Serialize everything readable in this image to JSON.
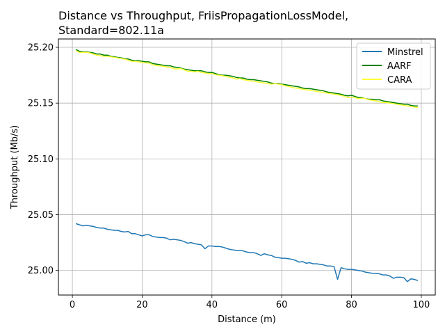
{
  "chart_data": {
    "type": "line",
    "title_line1": "Distance vs Throughput, FriisPropagationLossModel,",
    "title_line2": "Standard=802.11a",
    "xlabel": "Distance (m)",
    "ylabel": "Throughput (Mb/s)",
    "xlim": [
      -4,
      104
    ],
    "ylim": [
      24.978,
      25.2075
    ],
    "xticks": [
      0,
      20,
      40,
      60,
      80,
      100
    ],
    "yticks": [
      25.0,
      25.05,
      25.1,
      25.15,
      25.2
    ],
    "xtick_labels": [
      "0",
      "20",
      "40",
      "60",
      "80",
      "100"
    ],
    "ytick_labels": [
      "25.00",
      "25.05",
      "25.10",
      "25.15",
      "25.20"
    ],
    "grid": true,
    "legend_position": "top-right",
    "series": [
      {
        "name": "Minstrel",
        "color": "#1f77b4",
        "x": [
          1,
          2,
          3,
          4,
          5,
          6,
          7,
          8,
          9,
          10,
          11,
          12,
          13,
          14,
          15,
          16,
          17,
          18,
          19,
          20,
          21,
          22,
          23,
          24,
          25,
          26,
          27,
          28,
          29,
          30,
          31,
          32,
          33,
          34,
          35,
          36,
          37,
          38,
          39,
          40,
          41,
          42,
          43,
          44,
          45,
          46,
          47,
          48,
          49,
          50,
          51,
          52,
          53,
          54,
          55,
          56,
          57,
          58,
          59,
          60,
          61,
          62,
          63,
          64,
          65,
          66,
          67,
          68,
          69,
          70,
          71,
          72,
          73,
          74,
          75,
          76,
          77,
          78,
          79,
          80,
          81,
          82,
          83,
          84,
          85,
          86,
          87,
          88,
          89,
          90,
          91,
          92,
          93,
          94,
          95,
          96,
          97,
          98,
          99
        ],
        "y": [
          25.042,
          25.041,
          25.04,
          25.0405,
          25.04,
          25.0395,
          25.0385,
          25.038,
          25.038,
          25.037,
          25.0365,
          25.036,
          25.036,
          25.035,
          25.0345,
          25.035,
          25.033,
          25.033,
          25.032,
          25.031,
          25.032,
          25.032,
          25.0305,
          25.03,
          25.0295,
          25.0295,
          25.029,
          25.0275,
          25.028,
          25.0275,
          25.027,
          25.026,
          25.0245,
          25.025,
          25.024,
          25.0235,
          25.023,
          25.0195,
          25.022,
          25.022,
          25.0215,
          25.0215,
          25.021,
          25.02,
          25.019,
          25.0185,
          25.018,
          25.018,
          25.0175,
          25.0165,
          25.016,
          25.016,
          25.015,
          25.0135,
          25.015,
          25.014,
          25.0135,
          25.012,
          25.0115,
          25.011,
          25.011,
          25.0105,
          25.01,
          25.009,
          25.0075,
          25.008,
          25.0065,
          25.007,
          25.006,
          25.006,
          25.0055,
          25.005,
          25.004,
          25.004,
          25.0035,
          24.992,
          25.0025,
          25.0015,
          25.001,
          25.001,
          25.0005,
          25.0,
          24.9995,
          24.9985,
          24.998,
          24.9975,
          24.9975,
          24.997,
          24.996,
          24.996,
          24.995,
          24.993,
          24.994,
          24.994,
          24.9935,
          24.99,
          24.9925,
          24.992,
          24.991
        ]
      },
      {
        "name": "AARF",
        "color": "#008000",
        "x": [
          1,
          2,
          3,
          4,
          5,
          6,
          7,
          8,
          9,
          10,
          11,
          12,
          13,
          14,
          15,
          16,
          17,
          18,
          19,
          20,
          21,
          22,
          23,
          24,
          25,
          26,
          27,
          28,
          29,
          30,
          31,
          32,
          33,
          34,
          35,
          36,
          37,
          38,
          39,
          40,
          41,
          42,
          43,
          44,
          45,
          46,
          47,
          48,
          49,
          50,
          51,
          52,
          53,
          54,
          55,
          56,
          57,
          58,
          59,
          60,
          61,
          62,
          63,
          64,
          65,
          66,
          67,
          68,
          69,
          70,
          71,
          72,
          73,
          74,
          75,
          76,
          77,
          78,
          79,
          80,
          81,
          82,
          83,
          84,
          85,
          86,
          87,
          88,
          89,
          90,
          91,
          92,
          93,
          94,
          95,
          96,
          97,
          98,
          99
        ],
        "y": [
          25.198,
          25.1965,
          25.196,
          25.196,
          25.1955,
          25.195,
          25.194,
          25.194,
          25.193,
          25.193,
          25.192,
          25.1915,
          25.191,
          25.1905,
          25.19,
          25.1895,
          25.1885,
          25.188,
          25.188,
          25.1875,
          25.187,
          25.187,
          25.1855,
          25.185,
          25.1845,
          25.184,
          25.1835,
          25.1835,
          25.1825,
          25.182,
          25.1815,
          25.1805,
          25.18,
          25.1795,
          25.179,
          25.179,
          25.179,
          25.178,
          25.1775,
          25.1775,
          25.1765,
          25.1755,
          25.175,
          25.175,
          25.1745,
          25.174,
          25.173,
          25.1725,
          25.1725,
          25.1715,
          25.171,
          25.171,
          25.1705,
          25.17,
          25.1695,
          25.169,
          25.168,
          25.1675,
          25.1675,
          25.167,
          25.1665,
          25.166,
          25.1655,
          25.165,
          25.1645,
          25.1635,
          25.163,
          25.163,
          25.1625,
          25.162,
          25.1615,
          25.161,
          25.16,
          25.1595,
          25.159,
          25.1585,
          25.158,
          25.157,
          25.1565,
          25.157,
          25.156,
          25.155,
          25.155,
          25.154,
          25.1535,
          25.1535,
          25.153,
          25.153,
          25.152,
          25.1515,
          25.151,
          25.1505,
          25.15,
          25.1495,
          25.149,
          25.149,
          25.148,
          25.1475,
          25.1475
        ]
      },
      {
        "name": "CARA",
        "color": "#ffff33",
        "x": [
          1,
          2,
          3,
          4,
          5,
          6,
          7,
          8,
          9,
          10,
          11,
          12,
          13,
          14,
          15,
          16,
          17,
          18,
          19,
          20,
          21,
          22,
          23,
          24,
          25,
          26,
          27,
          28,
          29,
          30,
          31,
          32,
          33,
          34,
          35,
          36,
          37,
          38,
          39,
          40,
          41,
          42,
          43,
          44,
          45,
          46,
          47,
          48,
          49,
          50,
          51,
          52,
          53,
          54,
          55,
          56,
          57,
          58,
          59,
          60,
          61,
          62,
          63,
          64,
          65,
          66,
          67,
          68,
          69,
          70,
          71,
          72,
          73,
          74,
          75,
          76,
          77,
          78,
          79,
          80,
          81,
          82,
          83,
          84,
          85,
          86,
          87,
          88,
          89,
          90,
          91,
          92,
          93,
          94,
          95,
          96,
          97,
          98,
          99
        ],
        "y": [
          25.197,
          25.1955,
          25.1955,
          25.1955,
          25.195,
          25.194,
          25.193,
          25.1925,
          25.192,
          25.192,
          25.1915,
          25.191,
          25.1905,
          25.19,
          25.1895,
          25.1885,
          25.1875,
          25.1875,
          25.187,
          25.1865,
          25.186,
          25.186,
          25.1845,
          25.1835,
          25.1835,
          25.183,
          25.1825,
          25.182,
          25.181,
          25.1805,
          25.181,
          25.18,
          25.1785,
          25.1785,
          25.178,
          25.1785,
          25.1775,
          25.177,
          25.1765,
          25.1765,
          25.1755,
          25.175,
          25.1745,
          25.174,
          25.173,
          25.1725,
          25.1715,
          25.172,
          25.171,
          25.1705,
          25.17,
          25.1695,
          25.169,
          25.1685,
          25.168,
          25.1675,
          25.167,
          25.1675,
          25.167,
          25.1665,
          25.1655,
          25.165,
          25.164,
          25.1635,
          25.163,
          25.1625,
          25.162,
          25.1615,
          25.161,
          25.1605,
          25.16,
          25.1595,
          25.159,
          25.1585,
          25.158,
          25.1575,
          25.157,
          25.156,
          25.155,
          25.155,
          25.155,
          25.154,
          25.1545,
          25.154,
          25.153,
          25.1525,
          25.152,
          25.151,
          25.1505,
          25.1505,
          25.15,
          25.1495,
          25.149,
          25.1485,
          25.148,
          25.1475,
          25.147,
          25.1465,
          25.146
        ]
      }
    ]
  }
}
